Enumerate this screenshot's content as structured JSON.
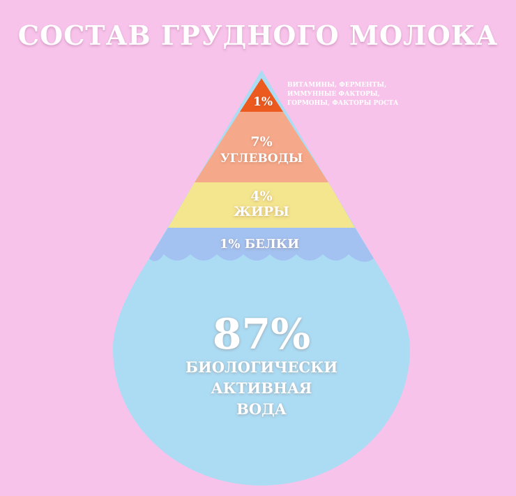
{
  "title": "СОСТАВ ГРУДНОГО МОЛОКА",
  "colors": {
    "background": "#f7c3ea",
    "tip": "#ec5a1f",
    "carbs": "#f6a98a",
    "fats": "#f4e58f",
    "proteins": "#a3c2f1",
    "water": "#acdcf4"
  },
  "layers": {
    "tip": {
      "percent": "1%",
      "note": [
        "ВИТАМИНЫ, ФЕРМЕНТЫ,",
        "ИММУННЫЕ ФАКТОРЫ,",
        "ГОРМОНЫ, ФАКТОРЫ РОСТА"
      ]
    },
    "carbs": {
      "percent": "7%",
      "label": "УГЛЕВОДЫ"
    },
    "fats": {
      "percent": "4%",
      "label": "ЖИРЫ"
    },
    "proteins": {
      "label": "1% БЕЛКИ"
    },
    "water": {
      "percent": "87%",
      "label": [
        "БИОЛОГИЧЕСКИ",
        "АКТИВНАЯ",
        "ВОДА"
      ]
    }
  }
}
